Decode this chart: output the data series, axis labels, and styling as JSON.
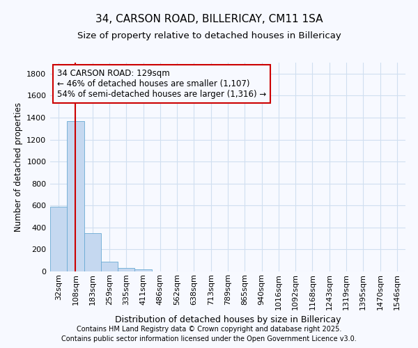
{
  "title_line1": "34, CARSON ROAD, BILLERICAY, CM11 1SA",
  "title_line2": "Size of property relative to detached houses in Billericay",
  "xlabel": "Distribution of detached houses by size in Billericay",
  "ylabel": "Number of detached properties",
  "categories": [
    "32sqm",
    "108sqm",
    "183sqm",
    "259sqm",
    "335sqm",
    "411sqm",
    "486sqm",
    "562sqm",
    "638sqm",
    "713sqm",
    "789sqm",
    "865sqm",
    "940sqm",
    "1016sqm",
    "1092sqm",
    "1168sqm",
    "1243sqm",
    "1319sqm",
    "1395sqm",
    "1470sqm",
    "1546sqm"
  ],
  "values": [
    590,
    1370,
    350,
    90,
    30,
    18,
    0,
    0,
    0,
    0,
    0,
    0,
    0,
    0,
    0,
    0,
    0,
    0,
    0,
    0,
    0
  ],
  "bar_color": "#c5d8f0",
  "bar_edge_color": "#6aaad4",
  "annotation_text": "34 CARSON ROAD: 129sqm\n← 46% of detached houses are smaller (1,107)\n54% of semi-detached houses are larger (1,316) →",
  "vline_x": 1,
  "vline_color": "#cc0000",
  "ylim": [
    0,
    1900
  ],
  "yticks": [
    0,
    200,
    400,
    600,
    800,
    1000,
    1200,
    1400,
    1600,
    1800
  ],
  "bg_color": "#f7f9ff",
  "grid_color": "#d0dff0",
  "footer_line1": "Contains HM Land Registry data © Crown copyright and database right 2025.",
  "footer_line2": "Contains public sector information licensed under the Open Government Licence v3.0.",
  "title_fontsize": 11,
  "subtitle_fontsize": 9.5,
  "annotation_fontsize": 8.5,
  "xlabel_fontsize": 9,
  "ylabel_fontsize": 8.5,
  "tick_fontsize": 8,
  "footer_fontsize": 7
}
